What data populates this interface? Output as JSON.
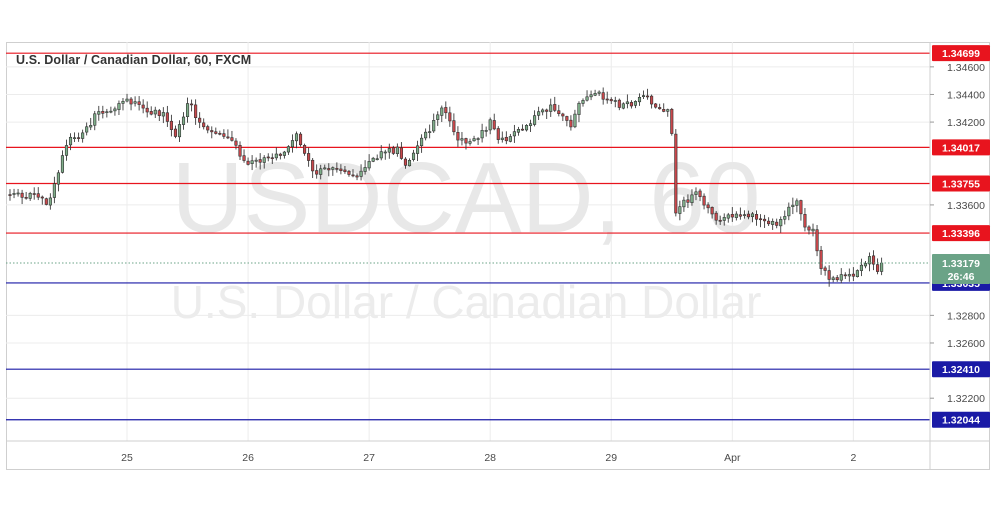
{
  "header": {
    "title": "U.S. Dollar / Canadian Dollar, 60, FXCM"
  },
  "watermark": {
    "symbol": "USDCAD, 60",
    "name": "U.S. Dollar / Canadian Dollar"
  },
  "price_axis": {
    "ticks": [
      "1.34600",
      "1.34400",
      "1.34200",
      "1.33600",
      "1.32800",
      "1.32600",
      "1.32200"
    ],
    "current_price": "1.33179",
    "countdown": "26:46"
  },
  "time_axis": {
    "labels": [
      "25",
      "26",
      "27",
      "28",
      "29",
      "Apr",
      "2"
    ]
  },
  "colors": {
    "up": "#7fae8a",
    "down": "#c9484c",
    "resistance": "#e8141e",
    "support": "#1a1aa6",
    "current": "#6ba387"
  },
  "chart_data": {
    "type": "candlestick",
    "title": "U.S. Dollar / Canadian Dollar, 60, FXCM",
    "symbol": "USDCAD",
    "interval": "60",
    "ylim": [
      1.3189,
      1.3478
    ],
    "x_range_hours": [
      0,
      227
    ],
    "x_ticks": [
      {
        "label": "25",
        "hour": 29
      },
      {
        "label": "26",
        "hour": 59
      },
      {
        "label": "27",
        "hour": 89
      },
      {
        "label": "28",
        "hour": 119
      },
      {
        "label": "29",
        "hour": 149
      },
      {
        "label": "Apr",
        "hour": 179
      },
      {
        "label": "2",
        "hour": 209
      }
    ],
    "horizontal_levels": [
      {
        "value": 1.34699,
        "label": "1.34699",
        "type": "resistance"
      },
      {
        "value": 1.34017,
        "label": "1.34017",
        "type": "resistance"
      },
      {
        "value": 1.33755,
        "label": "1.33755",
        "type": "resistance"
      },
      {
        "value": 1.33396,
        "label": "1.33396",
        "type": "resistance"
      },
      {
        "value": 1.33035,
        "label": "1.33035",
        "type": "support"
      },
      {
        "value": 1.3241,
        "label": "1.32410",
        "type": "support"
      },
      {
        "value": 1.32044,
        "label": "1.32044",
        "type": "support"
      }
    ],
    "current_price": 1.33179,
    "path_anchors": [
      [
        0,
        1.3368
      ],
      [
        8,
        1.3365
      ],
      [
        9,
        1.3358
      ],
      [
        11,
        1.3375
      ],
      [
        14,
        1.3405
      ],
      [
        18,
        1.3412
      ],
      [
        22,
        1.3428
      ],
      [
        26,
        1.343
      ],
      [
        29,
        1.3438
      ],
      [
        33,
        1.3428
      ],
      [
        38,
        1.3425
      ],
      [
        41,
        1.3408
      ],
      [
        44,
        1.3435
      ],
      [
        48,
        1.3415
      ],
      [
        52,
        1.341
      ],
      [
        55,
        1.3405
      ],
      [
        59,
        1.339
      ],
      [
        63,
        1.3392
      ],
      [
        68,
        1.3398
      ],
      [
        71,
        1.3412
      ],
      [
        73,
        1.3395
      ],
      [
        76,
        1.3382
      ],
      [
        78,
        1.3388
      ],
      [
        82,
        1.3385
      ],
      [
        86,
        1.3382
      ],
      [
        89,
        1.3393
      ],
      [
        93,
        1.3398
      ],
      [
        96,
        1.34
      ],
      [
        98,
        1.3387
      ],
      [
        101,
        1.3402
      ],
      [
        105,
        1.342
      ],
      [
        107,
        1.3432
      ],
      [
        110,
        1.3412
      ],
      [
        113,
        1.3403
      ],
      [
        116,
        1.3408
      ],
      [
        119,
        1.342
      ],
      [
        121,
        1.3406
      ],
      [
        124,
        1.341
      ],
      [
        127,
        1.3415
      ],
      [
        131,
        1.3426
      ],
      [
        134,
        1.343
      ],
      [
        137,
        1.3425
      ],
      [
        139,
        1.3418
      ],
      [
        142,
        1.3438
      ],
      [
        145,
        1.3442
      ],
      [
        147,
        1.3438
      ],
      [
        151,
        1.3433
      ],
      [
        154,
        1.3432
      ],
      [
        157,
        1.344
      ],
      [
        160,
        1.3432
      ],
      [
        163,
        1.3428
      ],
      [
        164,
        1.341
      ],
      [
        165,
        1.3352
      ],
      [
        167,
        1.3362
      ],
      [
        170,
        1.3367
      ],
      [
        173,
        1.336
      ],
      [
        175,
        1.3349
      ],
      [
        178,
        1.3352
      ],
      [
        182,
        1.3355
      ],
      [
        186,
        1.335
      ],
      [
        190,
        1.3345
      ],
      [
        193,
        1.3356
      ],
      [
        195,
        1.3365
      ],
      [
        197,
        1.3342
      ],
      [
        199,
        1.334
      ],
      [
        201,
        1.3315
      ],
      [
        203,
        1.3307
      ],
      [
        206,
        1.3308
      ],
      [
        209,
        1.331
      ],
      [
        211,
        1.3314
      ],
      [
        213,
        1.3322
      ],
      [
        215,
        1.3312
      ],
      [
        216,
        1.3318
      ]
    ],
    "last_candle_hour": 216
  }
}
